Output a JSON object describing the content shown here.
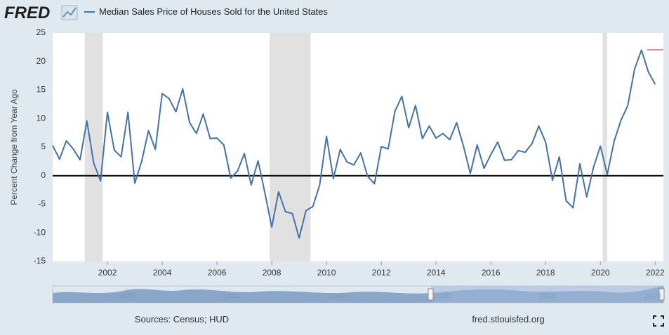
{
  "logo": "FRED",
  "chart_data": {
    "type": "line",
    "series": [
      {
        "name": "Median Sales Price of Houses Sold for the United States",
        "color": "#4572a7",
        "values": [
          5.3,
          2.9,
          6.1,
          4.7,
          2.8,
          9.6,
          2.2,
          -0.9,
          11.1,
          4.5,
          3.3,
          11.1,
          -1.3,
          2.5,
          7.9,
          4.6,
          14.4,
          13.5,
          11.2,
          15.2,
          9.3,
          7.4,
          10.8,
          6.5,
          6.6,
          5.4,
          -0.4,
          0.8,
          3.9,
          -1.6,
          2.6,
          -3.0,
          -9.0,
          -2.8,
          -6.3,
          -6.6,
          -10.9,
          -6.1,
          -5.4,
          -1.6,
          6.9,
          -0.5,
          4.6,
          2.4,
          1.9,
          4.0,
          -0.1,
          -1.4,
          5.1,
          4.7,
          11.3,
          13.9,
          8.4,
          12.3,
          6.5,
          8.7,
          6.6,
          7.4,
          6.3,
          9.3,
          5.2,
          0.4,
          5.4,
          1.3,
          3.7,
          5.9,
          2.7,
          2.8,
          4.4,
          4.1,
          5.6,
          8.7,
          5.9,
          -0.8,
          3.3,
          -4.4,
          -5.6,
          2.1,
          -3.7,
          1.5,
          5.2,
          0.2,
          6.0,
          9.7,
          12.3,
          18.7,
          22.0,
          18.2,
          16.0
        ]
      }
    ],
    "x": [
      2000,
      2000.25,
      2000.5,
      2000.75,
      2001,
      2001.25,
      2001.5,
      2001.75,
      2002,
      2002.25,
      2002.5,
      2002.75,
      2003,
      2003.25,
      2003.5,
      2003.75,
      2004,
      2004.25,
      2004.5,
      2004.75,
      2005,
      2005.25,
      2005.5,
      2005.75,
      2006,
      2006.25,
      2006.5,
      2006.75,
      2007,
      2007.25,
      2007.5,
      2007.75,
      2008,
      2008.25,
      2008.5,
      2008.75,
      2009,
      2009.25,
      2009.5,
      2009.75,
      2010,
      2010.25,
      2010.5,
      2010.75,
      2011,
      2011.25,
      2011.5,
      2011.75,
      2012,
      2012.25,
      2012.5,
      2012.75,
      2013,
      2013.25,
      2013.5,
      2013.75,
      2014,
      2014.25,
      2014.5,
      2014.75,
      2015,
      2015.25,
      2015.5,
      2015.75,
      2016,
      2016.25,
      2016.5,
      2016.75,
      2017,
      2017.25,
      2017.5,
      2017.75,
      2018,
      2018.25,
      2018.5,
      2018.75,
      2019,
      2019.25,
      2019.5,
      2019.75,
      2020,
      2020.25,
      2020.5,
      2020.75,
      2021,
      2021.25,
      2021.5,
      2021.75,
      2022
    ],
    "recessions": [
      [
        2001.17,
        2001.83
      ],
      [
        2007.92,
        2009.42
      ],
      [
        2020.08,
        2020.25
      ]
    ],
    "recession_color": "#e1e1e1",
    "y_label": "Percent Change from Year Ago",
    "xlim": [
      2000,
      2022.3
    ],
    "xticks": [
      2002,
      2004,
      2006,
      2008,
      2010,
      2012,
      2014,
      2016,
      2018,
      2020,
      2022
    ],
    "ylim": [
      -15,
      25
    ],
    "yticks": [
      -15,
      -10,
      -5,
      0,
      5,
      10,
      15,
      20,
      25
    ],
    "grid": false
  },
  "navigator": {
    "labels": [
      "1970",
      "1980",
      "1990",
      "2000",
      "2010",
      "2020"
    ]
  },
  "footer": {
    "source": "Sources: Census; HUD",
    "site": "fred.stlouisfed.org"
  }
}
